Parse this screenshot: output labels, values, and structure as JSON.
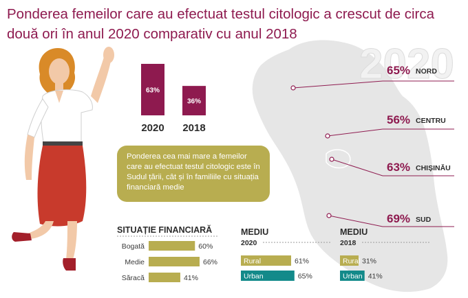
{
  "title": "Ponderea femeilor care au efectuat testul citologic a crescut de circa două ori în anul 2020 comparativ cu anul 2018",
  "watermark_year": "2020",
  "note": "Ponderea cea mai mare a femeilor care au efectuat testul citologic este în Sudul țării, cât și în familiile cu situația financiară medie",
  "colors": {
    "accent": "#8e1a4f",
    "olive": "#b8ad50",
    "teal": "#138a8a",
    "map": "#e6e6e6"
  },
  "chart_data": [
    {
      "type": "bar",
      "categories": [
        "2020",
        "2018"
      ],
      "values": [
        63,
        36
      ],
      "value_labels": [
        "63%",
        "36%"
      ]
    },
    {
      "type": "table",
      "regions": [
        {
          "name": "NORD",
          "value": 65,
          "label": "65%"
        },
        {
          "name": "CENTRU",
          "value": 56,
          "label": "56%"
        },
        {
          "name": "CHIȘINĂU",
          "value": 63,
          "label": "63%"
        },
        {
          "name": "SUD",
          "value": 69,
          "label": "69%"
        }
      ]
    },
    {
      "type": "bar",
      "title": "SITUAȚIE FINANCIARĂ",
      "categories": [
        "Bogată",
        "Medie",
        "Săracă"
      ],
      "values": [
        60,
        66,
        41
      ],
      "value_labels": [
        "60%",
        "66%",
        "41%"
      ]
    },
    {
      "type": "bar",
      "title": "MEDIU",
      "subtitle": "2020",
      "categories": [
        "Rural",
        "Urban"
      ],
      "values": [
        61,
        65
      ],
      "value_labels": [
        "61%",
        "65%"
      ]
    },
    {
      "type": "bar",
      "title": "MEDIU",
      "subtitle": "2018",
      "categories": [
        "Rural",
        "Urban"
      ],
      "values": [
        31,
        41
      ],
      "value_labels": [
        "31%",
        "41%"
      ]
    }
  ]
}
